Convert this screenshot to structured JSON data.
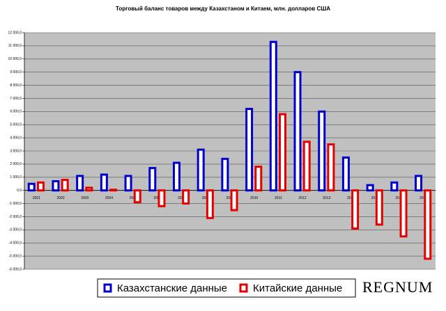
{
  "chart_data": {
    "type": "bar",
    "title": "Торговый баланс товаров между Казахстаном и Китаем, млн. долларов США",
    "categories": [
      "2001",
      "2002",
      "2003",
      "2004",
      "2005",
      "2006",
      "2007",
      "2008",
      "2009",
      "2010",
      "2011",
      "2012",
      "2013",
      "2014",
      "2015",
      "2016",
      "2017"
    ],
    "series": [
      {
        "name": "Казахстанские данные",
        "color": "#0000cc",
        "values": [
          500,
          700,
          1100,
          1200,
          1100,
          1700,
          2100,
          3100,
          2400,
          6200,
          11300,
          9000,
          6000,
          2500,
          400,
          600,
          1100
        ]
      },
      {
        "name": "Китайские данные",
        "color": "#e60000",
        "values": [
          600,
          800,
          200,
          50,
          -900,
          -1200,
          -1000,
          -2100,
          -1500,
          1800,
          5800,
          3700,
          3500,
          -2900,
          -2600,
          -3500,
          -5200
        ]
      }
    ],
    "ylim": [
      -6000,
      12000
    ],
    "yticks": [
      {
        "value": -6000,
        "label": "-6 000,0"
      },
      {
        "value": -5000,
        "label": "-5 000,0"
      },
      {
        "value": -4000,
        "label": "-4 000,0"
      },
      {
        "value": -3000,
        "label": "-3 000,0"
      },
      {
        "value": -2000,
        "label": "-2 000,0"
      },
      {
        "value": -1000,
        "label": "-1 000,0"
      },
      {
        "value": 0,
        "label": "0,0"
      },
      {
        "value": 1000,
        "label": "1 000,0"
      },
      {
        "value": 2000,
        "label": "2 000,0"
      },
      {
        "value": 3000,
        "label": "3 000,0"
      },
      {
        "value": 4000,
        "label": "4 000,0"
      },
      {
        "value": 5000,
        "label": "5 000,0"
      },
      {
        "value": 6000,
        "label": "6 000,0"
      },
      {
        "value": 7000,
        "label": "7 000,0"
      },
      {
        "value": 8000,
        "label": "8 000,0"
      },
      {
        "value": 9000,
        "label": "9 000,0"
      },
      {
        "value": 10000,
        "label": "10 000,0"
      },
      {
        "value": 11000,
        "label": "11 000,0"
      },
      {
        "value": 12000,
        "label": "12 000,0"
      }
    ],
    "grid": true,
    "legend": "bottom",
    "logo": "REGNUM"
  }
}
